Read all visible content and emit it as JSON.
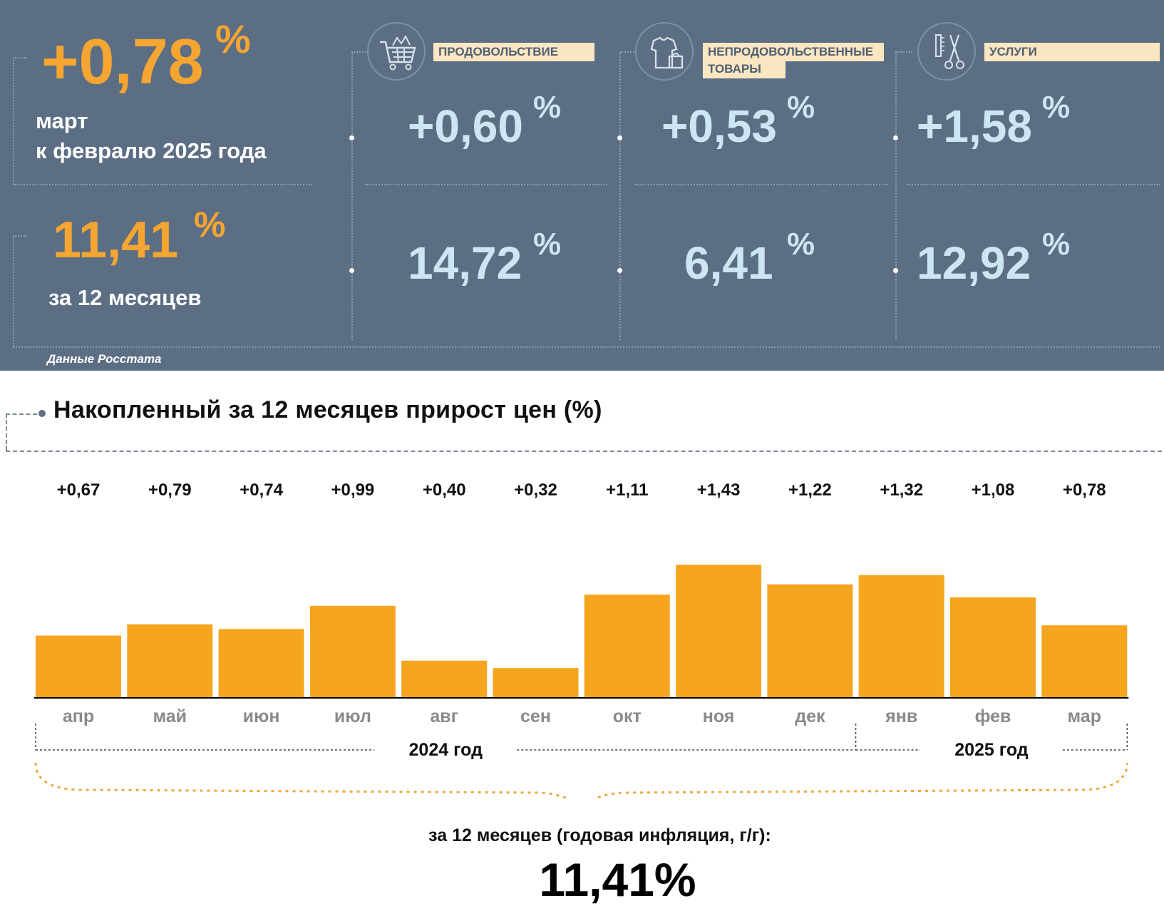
{
  "summary": {
    "monthly": {
      "value": "+0,78",
      "unit": "%",
      "line1": "март",
      "line2": "к февралю 2025 года"
    },
    "annual": {
      "value": "11,41",
      "unit": "%",
      "line1": "за 12 месяцев"
    },
    "source": "Данные Росстата"
  },
  "categories": [
    {
      "label": "ПРОДОВОЛЬСТВИЕ",
      "icon": "shopping-cart-icon",
      "monthly": "+0,60",
      "annual": "14,72",
      "unit": "%"
    },
    {
      "label_line1": "НЕПРОДОВОЛЬСТВЕННЫЕ",
      "label_line2": "ТОВАРЫ",
      "icon": "clothes-bag-icon",
      "monthly": "+0,53",
      "annual": "6,41",
      "unit": "%"
    },
    {
      "label": "УСЛУГИ",
      "icon": "comb-scissors-icon",
      "monthly": "+1,58",
      "annual": "12,92",
      "unit": "%"
    }
  ],
  "chart_data": {
    "type": "bar",
    "title": "Накопленный за 12 месяцев прирост цен (%)",
    "categories": [
      "апр",
      "май",
      "июн",
      "июл",
      "авг",
      "сен",
      "окт",
      "ноя",
      "дек",
      "янв",
      "фев",
      "мар"
    ],
    "values": [
      0.67,
      0.79,
      0.74,
      0.99,
      0.4,
      0.32,
      1.11,
      1.43,
      1.22,
      1.32,
      1.08,
      0.78
    ],
    "value_labels": [
      "+0,67",
      "+0,79",
      "+0,74",
      "+0,99",
      "+0,40",
      "+0,32",
      "+1,11",
      "+1,43",
      "+1,22",
      "+1,32",
      "+1,08",
      "+0,78"
    ],
    "year_groups": [
      {
        "label": "2024 год",
        "months": 9
      },
      {
        "label": "2025 год",
        "months": 3
      }
    ],
    "bar_color": "#f6a51f",
    "ylim": [
      0,
      1.5
    ],
    "annual_caption": "за 12 месяцев (годовая инфляция, г/г):",
    "annual_value": "11,41%"
  }
}
